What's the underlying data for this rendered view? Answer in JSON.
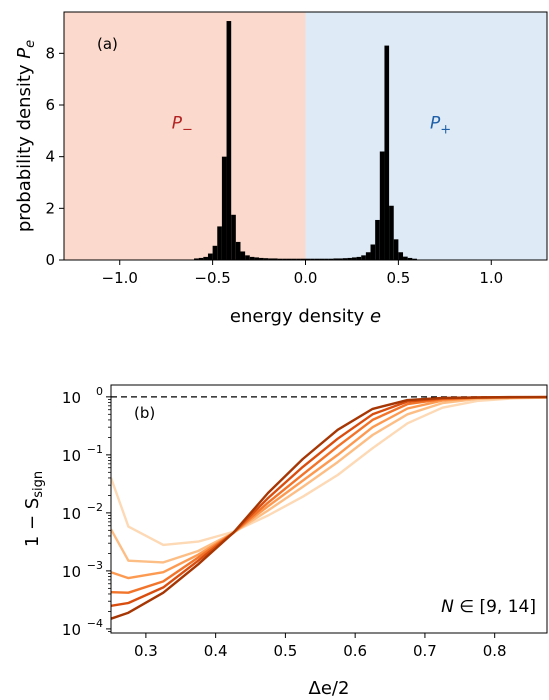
{
  "chart_data": [
    {
      "type": "bar",
      "panel_label": "(a)",
      "xlabel": "energy density ",
      "xlabel_var": "e",
      "ylabel": "probability density ",
      "ylabel_var": "P",
      "ylabel_sub": "e",
      "xlim": [
        -1.3,
        1.3
      ],
      "ylim": [
        0,
        9.6
      ],
      "xticks": [
        -1.0,
        -0.5,
        0.0,
        0.5,
        1.0
      ],
      "xtick_labels": [
        "−1.0",
        "−0.5",
        "0.0",
        "0.5",
        "1.0"
      ],
      "yticks": [
        0,
        2,
        4,
        6,
        8
      ],
      "ytick_labels": [
        "0",
        "2",
        "4",
        "6",
        "8"
      ],
      "regions": [
        {
          "name": "P−",
          "from": -1.3,
          "to": 0.0,
          "color": "#fbd9cc",
          "label": "P",
          "sub": "−",
          "label_color": "#b22222",
          "label_x": -0.72,
          "label_y": 5.1
        },
        {
          "name": "P+",
          "from": 0.0,
          "to": 1.3,
          "color": "#deebf7",
          "label": "P",
          "sub": "+",
          "label_color": "#1f5fa8",
          "label_x": 0.67,
          "label_y": 5.1
        }
      ],
      "bin_width": 0.025,
      "bars": [
        {
          "x": -0.6,
          "y": 0.06
        },
        {
          "x": -0.575,
          "y": 0.08
        },
        {
          "x": -0.55,
          "y": 0.12
        },
        {
          "x": -0.525,
          "y": 0.25
        },
        {
          "x": -0.5,
          "y": 0.55
        },
        {
          "x": -0.475,
          "y": 1.3
        },
        {
          "x": -0.45,
          "y": 4.0
        },
        {
          "x": -0.425,
          "y": 9.25
        },
        {
          "x": -0.4,
          "y": 1.75
        },
        {
          "x": -0.375,
          "y": 0.7
        },
        {
          "x": -0.35,
          "y": 0.33
        },
        {
          "x": -0.325,
          "y": 0.18
        },
        {
          "x": -0.3,
          "y": 0.12
        },
        {
          "x": -0.275,
          "y": 0.1
        },
        {
          "x": -0.25,
          "y": 0.08
        },
        {
          "x": -0.225,
          "y": 0.07
        },
        {
          "x": -0.2,
          "y": 0.06
        },
        {
          "x": -0.175,
          "y": 0.06
        },
        {
          "x": -0.15,
          "y": 0.05
        },
        {
          "x": -0.125,
          "y": 0.05
        },
        {
          "x": -0.1,
          "y": 0.05
        },
        {
          "x": -0.075,
          "y": 0.05
        },
        {
          "x": -0.05,
          "y": 0.05
        },
        {
          "x": -0.025,
          "y": 0.05
        },
        {
          "x": 0.0,
          "y": 0.05
        },
        {
          "x": 0.025,
          "y": 0.05
        },
        {
          "x": 0.05,
          "y": 0.05
        },
        {
          "x": 0.075,
          "y": 0.05
        },
        {
          "x": 0.1,
          "y": 0.05
        },
        {
          "x": 0.125,
          "y": 0.05
        },
        {
          "x": 0.15,
          "y": 0.06
        },
        {
          "x": 0.175,
          "y": 0.06
        },
        {
          "x": 0.2,
          "y": 0.07
        },
        {
          "x": 0.225,
          "y": 0.08
        },
        {
          "x": 0.25,
          "y": 0.1
        },
        {
          "x": 0.275,
          "y": 0.12
        },
        {
          "x": 0.3,
          "y": 0.18
        },
        {
          "x": 0.325,
          "y": 0.3
        },
        {
          "x": 0.35,
          "y": 0.6
        },
        {
          "x": 0.375,
          "y": 1.55
        },
        {
          "x": 0.4,
          "y": 4.2
        },
        {
          "x": 0.425,
          "y": 8.3
        },
        {
          "x": 0.45,
          "y": 2.1
        },
        {
          "x": 0.475,
          "y": 0.8
        },
        {
          "x": 0.5,
          "y": 0.3
        },
        {
          "x": 0.525,
          "y": 0.13
        },
        {
          "x": 0.55,
          "y": 0.08
        },
        {
          "x": 0.575,
          "y": 0.05
        }
      ]
    },
    {
      "type": "line",
      "panel_label": "(b)",
      "xlabel": "Δe/2",
      "ylabel": "1 − S",
      "ylabel_sub": "sign",
      "y_scale": "log",
      "xlim": [
        0.25,
        0.875
      ],
      "ylim": [
        8.5e-05,
        1.6
      ],
      "xticks": [
        0.3,
        0.4,
        0.5,
        0.6,
        0.7,
        0.8
      ],
      "xtick_labels": [
        "0.3",
        "0.4",
        "0.5",
        "0.6",
        "0.7",
        "0.8"
      ],
      "yticks": [
        0.0001,
        0.001,
        0.01,
        0.1,
        1
      ],
      "ytick_bases": [
        "10",
        "10",
        "10",
        "10",
        "10"
      ],
      "ytick_exps": [
        "−4",
        "−3",
        "−2",
        "−1",
        "0"
      ],
      "reference_line": {
        "y": 1,
        "style": "dashed",
        "color": "#000000"
      },
      "annotation": {
        "text_var": "N",
        "text_rest": " ∈ [9, 14]"
      },
      "x": [
        0.25,
        0.275,
        0.325,
        0.375,
        0.425,
        0.475,
        0.525,
        0.575,
        0.625,
        0.675,
        0.725,
        0.775,
        0.825,
        0.875
      ],
      "series": [
        {
          "color": "#fdd9b5",
          "values": [
            0.04,
            0.0058,
            0.0028,
            0.0032,
            0.0047,
            0.009,
            0.019,
            0.045,
            0.13,
            0.35,
            0.65,
            0.85,
            0.94,
            0.97
          ]
        },
        {
          "color": "#fdbe85",
          "values": [
            0.0052,
            0.0015,
            0.0014,
            0.0022,
            0.0045,
            0.011,
            0.028,
            0.075,
            0.22,
            0.5,
            0.78,
            0.92,
            0.96,
            0.98
          ]
        },
        {
          "color": "#fd9a52",
          "values": [
            0.00095,
            0.00075,
            0.00095,
            0.0019,
            0.0045,
            0.013,
            0.036,
            0.1,
            0.3,
            0.63,
            0.86,
            0.95,
            0.975,
            0.985
          ]
        },
        {
          "color": "#f1742a",
          "values": [
            0.00043,
            0.00042,
            0.00066,
            0.0017,
            0.0045,
            0.015,
            0.046,
            0.14,
            0.4,
            0.75,
            0.91,
            0.965,
            0.98,
            0.99
          ]
        },
        {
          "color": "#d94e0f",
          "values": [
            0.00025,
            0.00028,
            0.00052,
            0.0015,
            0.0045,
            0.018,
            0.062,
            0.19,
            0.5,
            0.83,
            0.94,
            0.975,
            0.985,
            0.99
          ]
        },
        {
          "color": "#a63603",
          "values": [
            0.00015,
            0.00019,
            0.00042,
            0.0013,
            0.0045,
            0.022,
            0.085,
            0.27,
            0.62,
            0.88,
            0.96,
            0.98,
            0.99,
            0.99
          ]
        }
      ]
    }
  ]
}
